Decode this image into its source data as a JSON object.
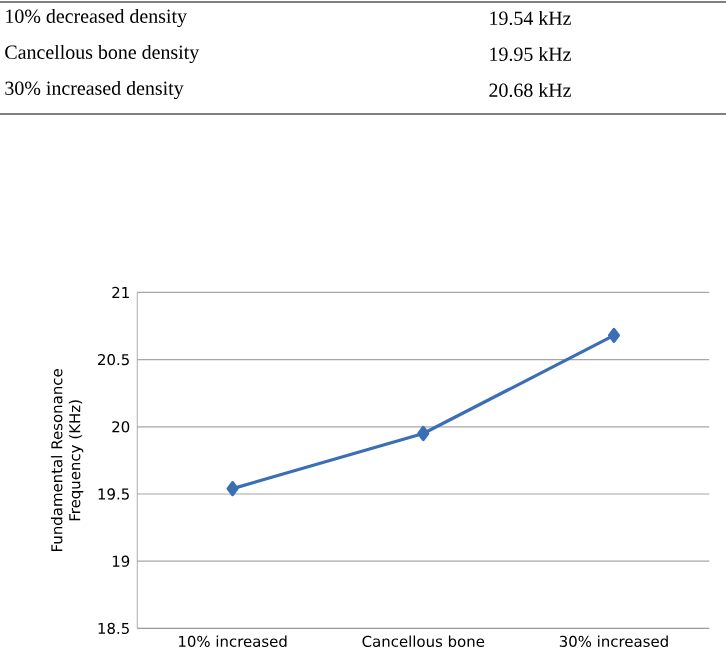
{
  "chart_data": {
    "type": "line",
    "ylabel": "Fundamental Resonance Frequency (KHz)",
    "categories": [
      "10% increased",
      "Cancellous bone",
      "30% increased"
    ],
    "values": [
      19.54,
      19.95,
      20.68
    ],
    "color": "#3a6fb5",
    "ylim": [
      18.5,
      21
    ],
    "yticks": [
      18.5,
      19,
      19.5,
      20,
      20.5,
      21
    ],
    "grid": "y",
    "marker": "diamond",
    "annotations": [
      "10% decreased density",
      "19.54 kHz",
      "Cancellous bone density",
      "19.95 kHz",
      "30% increased density",
      "20.68 kHz"
    ]
  }
}
